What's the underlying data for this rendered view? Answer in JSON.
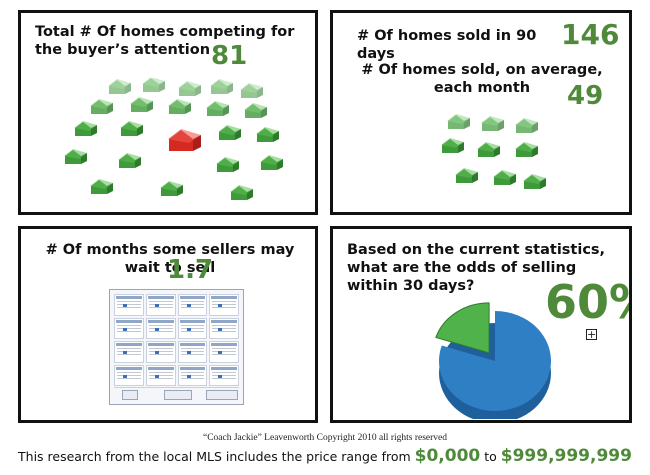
{
  "panels": {
    "competing": {
      "title": "Total # Of homes competing for the buyer’s attention",
      "value": "81"
    },
    "sold": {
      "title_90": "# Of homes sold in 90 days",
      "value_90": "146",
      "title_avg": "# Of homes sold, on average, each month",
      "value_avg": "49"
    },
    "months": {
      "title": "# Of months some sellers may wait to sell",
      "value": "1.7"
    },
    "odds": {
      "title": "Based on the current statistics, what are the odds of selling within 30 days?",
      "value": "60%",
      "pie_slice_fraction": 0.2
    }
  },
  "colors": {
    "green": "#4f8a3a",
    "house_green": "#3e9a3a",
    "house_red": "#d42a22",
    "pie_blue": "#2f7fc4",
    "pie_green": "#4fb24a"
  },
  "icons": [
    "house-icon",
    "calendar-icon",
    "pie-chart-icon",
    "plus-box-icon"
  ],
  "credit": "“Coach Jackie” Leavenworth Copyright 2010 all rights reserved",
  "footer": {
    "text_before": "This research from the local MLS includes the price range from ",
    "price_low": "$0,000",
    "text_mid": " to ",
    "price_high": "$999,999,999"
  }
}
